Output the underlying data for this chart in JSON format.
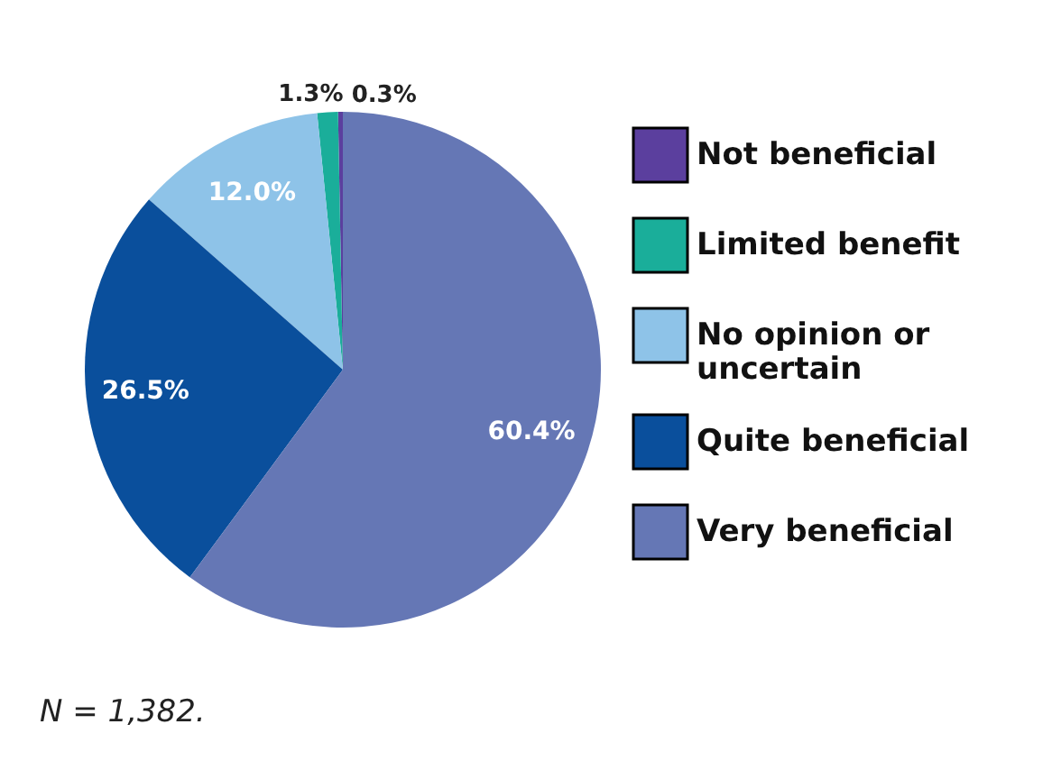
{
  "chart_data": {
    "type": "pie",
    "categories": [
      "Not beneficial",
      "Limited benefit",
      "No opinion or uncertain",
      "Quite beneficial",
      "Very beneficial"
    ],
    "values": [
      0.3,
      1.3,
      12.0,
      26.5,
      60.4
    ],
    "colors": [
      "#5b3f9e",
      "#1aae9a",
      "#8ec3e8",
      "#0a4f9c",
      "#6577b5"
    ],
    "value_labels": [
      "0.3%",
      "1.3%",
      "12.0%",
      "26.5%",
      "60.4%"
    ],
    "legend": "right",
    "annotations": [
      "N = 1,382."
    ]
  }
}
